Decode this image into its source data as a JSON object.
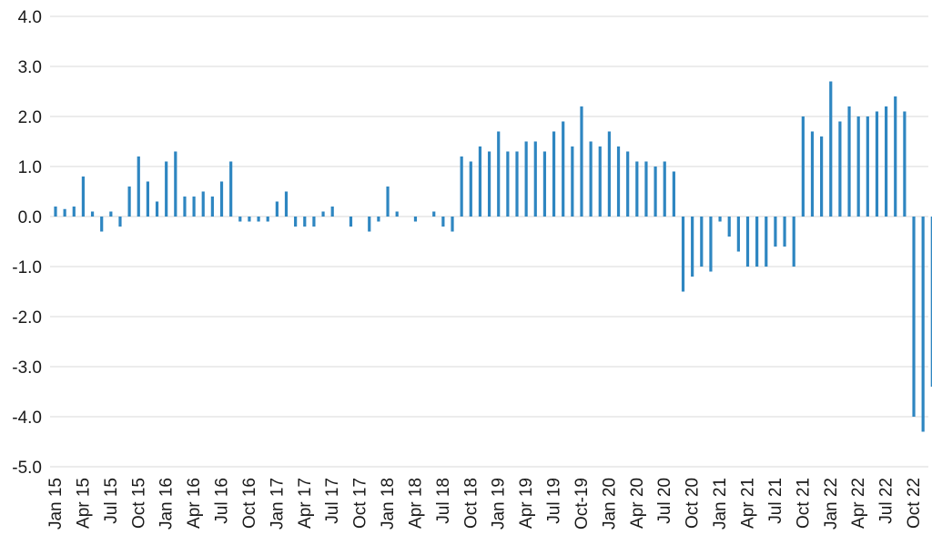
{
  "chart_data": {
    "type": "bar",
    "title": "",
    "xlabel": "",
    "ylabel": "",
    "ylim": [
      -5.0,
      4.0
    ],
    "yticks": [
      "4.0",
      "3.0",
      "2.0",
      "1.0",
      "0.0",
      "-1.0",
      "-2.0",
      "-3.0",
      "-4.0",
      "-5.0"
    ],
    "grid": true,
    "color": "#2e86c1",
    "x_tick_labels": [
      "Jan 15",
      "Apr 15",
      "Jul 15",
      "Oct 15",
      "Jan 16",
      "Apr 16",
      "Jul 16",
      "Oct 16",
      "Jan 17",
      "Apr 17",
      "Jul 17",
      "Oct 17",
      "Jan 18",
      "Apr 18",
      "Jul 18",
      "Oct 18",
      "Jan 19",
      "Apr 19",
      "Jul 19",
      "Oct-19",
      "Jan 20",
      "Apr 20",
      "Jul 20",
      "Oct 20",
      "Jan 21",
      "Apr 21",
      "Jul 21",
      "Oct 21",
      "Jan 22",
      "Apr 22",
      "Jul 22",
      "Oct 22"
    ],
    "values": [
      0.2,
      0.15,
      0.2,
      0.8,
      0.1,
      -0.3,
      0.1,
      -0.2,
      0.6,
      1.2,
      0.7,
      0.3,
      1.1,
      1.3,
      0.4,
      0.4,
      0.5,
      0.4,
      0.7,
      1.1,
      -0.1,
      -0.1,
      -0.1,
      -0.1,
      0.3,
      0.5,
      -0.2,
      -0.2,
      -0.2,
      0.1,
      0.2,
      0.0,
      -0.2,
      0.0,
      -0.3,
      -0.1,
      0.6,
      0.1,
      0.0,
      -0.1,
      0.0,
      0.1,
      -0.2,
      -0.3,
      1.2,
      1.1,
      1.4,
      1.3,
      1.7,
      1.3,
      1.3,
      1.5,
      1.5,
      1.3,
      1.7,
      1.9,
      1.4,
      2.2,
      1.5,
      1.4,
      1.7,
      1.4,
      1.3,
      1.1,
      1.1,
      1.0,
      1.1,
      0.9,
      -1.5,
      -1.2,
      -1.0,
      -1.1,
      -0.1,
      -0.4,
      -0.7,
      -1.0,
      -1.0,
      -1.0,
      -0.6,
      -0.6,
      -1.0,
      2.0,
      1.7,
      1.6,
      2.7,
      1.9,
      2.2,
      2.0,
      2.0,
      2.1,
      2.2,
      2.4,
      2.1,
      -4.0,
      -4.3,
      -3.4
    ]
  }
}
